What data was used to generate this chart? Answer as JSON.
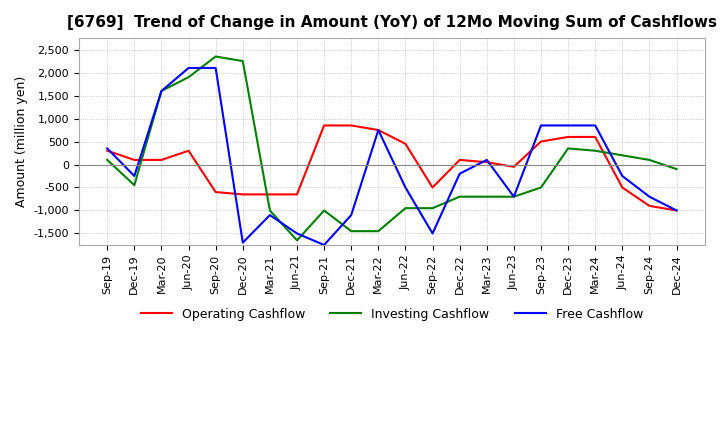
{
  "title": "[6769]  Trend of Change in Amount (YoY) of 12Mo Moving Sum of Cashflows",
  "ylabel": "Amount (million yen)",
  "ylim": [
    -1750,
    2750
  ],
  "yticks": [
    -1500,
    -1000,
    -500,
    0,
    500,
    1000,
    1500,
    2000,
    2500
  ],
  "x_labels": [
    "Sep-19",
    "Dec-19",
    "Mar-20",
    "Jun-20",
    "Sep-20",
    "Dec-20",
    "Mar-21",
    "Jun-21",
    "Sep-21",
    "Dec-21",
    "Mar-22",
    "Jun-22",
    "Sep-22",
    "Dec-22",
    "Mar-23",
    "Jun-23",
    "Sep-23",
    "Dec-23",
    "Mar-24",
    "Jun-24",
    "Sep-24",
    "Dec-24"
  ],
  "operating": [
    300,
    100,
    100,
    300,
    -600,
    -650,
    -650,
    -650,
    850,
    850,
    750,
    450,
    -500,
    100,
    50,
    -50,
    500,
    600,
    600,
    -500,
    -900,
    -1000
  ],
  "investing": [
    100,
    -450,
    1600,
    1900,
    2350,
    2250,
    -1000,
    -1650,
    -1000,
    -1450,
    -1450,
    -950,
    -950,
    -700,
    -700,
    -700,
    -500,
    350,
    300,
    200,
    100,
    -100
  ],
  "free": [
    350,
    -250,
    1600,
    2100,
    2100,
    -1700,
    -1100,
    -1500,
    -1750,
    -1100,
    750,
    -500,
    -1500,
    -200,
    100,
    -700,
    850,
    850,
    850,
    -250,
    -700,
    -1000
  ],
  "operating_color": "#ff0000",
  "investing_color": "#008000",
  "free_color": "#0000ff",
  "background_color": "#ffffff",
  "grid_color": "#aaaaaa",
  "grid_linestyle": "dotted"
}
